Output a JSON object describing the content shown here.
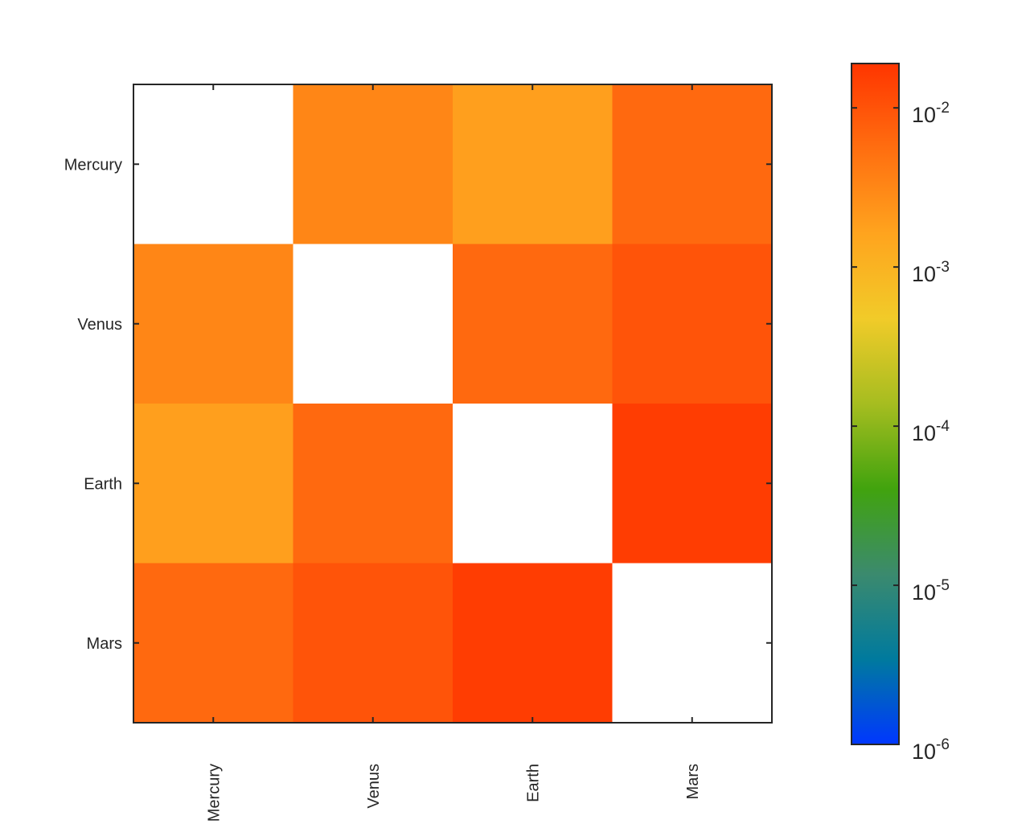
{
  "chart_data": {
    "type": "heatmap",
    "title": "",
    "xlabel": "",
    "ylabel": "",
    "x_categories": [
      "Mercury",
      "Venus",
      "Earth",
      "Mars"
    ],
    "y_categories": [
      "Mercury",
      "Venus",
      "Earth",
      "Mars"
    ],
    "values": [
      [
        null,
        0.0032,
        0.0018,
        0.0062
      ],
      [
        0.0032,
        null,
        0.0062,
        0.0098
      ],
      [
        0.0018,
        0.0062,
        null,
        0.016
      ],
      [
        0.0062,
        0.0098,
        0.016,
        null
      ]
    ],
    "diagonal_color": "#ffffff",
    "colorbar": {
      "scale": "log",
      "range": [
        1e-06,
        0.019
      ],
      "ticks": [
        1e-06,
        1e-05,
        0.0001,
        0.001,
        0.01
      ],
      "tick_labels": [
        {
          "base": "10",
          "exp": "-6"
        },
        {
          "base": "10",
          "exp": "-5"
        },
        {
          "base": "10",
          "exp": "-4"
        },
        {
          "base": "10",
          "exp": "-3"
        },
        {
          "base": "10",
          "exp": "-2"
        }
      ],
      "colormap": [
        "#0037ff",
        "#007a9e",
        "#3b8a6e",
        "#41a30e",
        "#a6bd20",
        "#f1cb29",
        "#ffa41e",
        "#ff6e10",
        "#ff3500"
      ]
    },
    "grid": false
  }
}
